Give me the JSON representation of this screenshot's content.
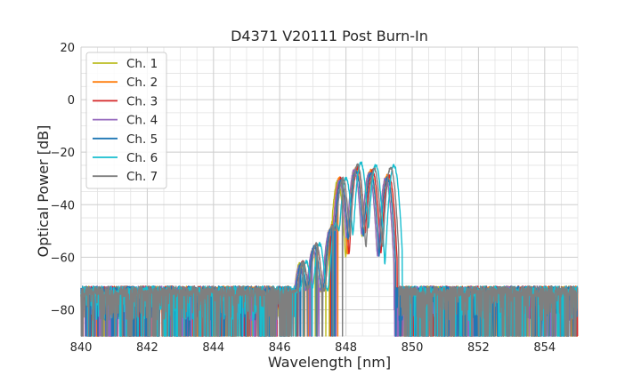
{
  "chart_data": {
    "type": "line",
    "title": "D4371 V20111 Post Burn-In",
    "xlabel": "Wavelength [nm]",
    "ylabel": "Optical Power [dB]",
    "xlim": [
      840,
      855
    ],
    "ylim": [
      -90,
      20
    ],
    "xticks": [
      840,
      842,
      844,
      846,
      848,
      850,
      852,
      854
    ],
    "yticks": [
      -80,
      -60,
      -40,
      -20,
      0,
      20
    ],
    "grid": true,
    "legend_position": "top-left",
    "noise_floor_db": -75,
    "series": [
      {
        "name": "Ch. 1",
        "color": "#bcbd22",
        "peaks": [
          [
            846.6,
            -63
          ],
          [
            847.0,
            -57
          ],
          [
            847.5,
            -50
          ],
          [
            847.75,
            -31
          ],
          [
            848.25,
            -27
          ],
          [
            848.7,
            -28
          ],
          [
            849.2,
            -30
          ]
        ]
      },
      {
        "name": "Ch. 2",
        "color": "#ff7f0e",
        "peaks": [
          [
            846.65,
            -63
          ],
          [
            847.05,
            -56
          ],
          [
            847.55,
            -49
          ],
          [
            847.8,
            -30
          ],
          [
            848.3,
            -26
          ],
          [
            848.75,
            -27
          ],
          [
            849.25,
            -29
          ]
        ]
      },
      {
        "name": "Ch. 3",
        "color": "#d62728",
        "peaks": [
          [
            846.7,
            -62
          ],
          [
            847.1,
            -55
          ],
          [
            847.6,
            -48
          ],
          [
            847.85,
            -30
          ],
          [
            848.35,
            -26
          ],
          [
            848.8,
            -27
          ],
          [
            849.3,
            -29
          ]
        ]
      },
      {
        "name": "Ch. 4",
        "color": "#9467bd",
        "peaks": [
          [
            846.6,
            -64
          ],
          [
            847.0,
            -57
          ],
          [
            847.5,
            -50
          ],
          [
            847.8,
            -31
          ],
          [
            848.25,
            -27
          ],
          [
            848.7,
            -28
          ],
          [
            849.2,
            -30
          ]
        ]
      },
      {
        "name": "Ch. 5",
        "color": "#1f77b4",
        "peaks": [
          [
            846.65,
            -63
          ],
          [
            847.05,
            -56
          ],
          [
            847.55,
            -49
          ],
          [
            847.85,
            -31
          ],
          [
            848.3,
            -27
          ],
          [
            848.75,
            -28
          ],
          [
            849.25,
            -30
          ]
        ]
      },
      {
        "name": "Ch. 6",
        "color": "#17becf",
        "peaks": [
          [
            846.8,
            -62
          ],
          [
            847.2,
            -55
          ],
          [
            847.7,
            -47
          ],
          [
            848.0,
            -30
          ],
          [
            848.45,
            -24
          ],
          [
            848.9,
            -25
          ],
          [
            849.45,
            -25
          ]
        ]
      },
      {
        "name": "Ch. 7",
        "color": "#7f7f7f",
        "peaks": [
          [
            846.7,
            -62
          ],
          [
            847.1,
            -55
          ],
          [
            847.6,
            -48
          ],
          [
            847.9,
            -30
          ],
          [
            848.35,
            -25
          ],
          [
            848.85,
            -26
          ],
          [
            849.35,
            -26
          ]
        ]
      }
    ]
  }
}
